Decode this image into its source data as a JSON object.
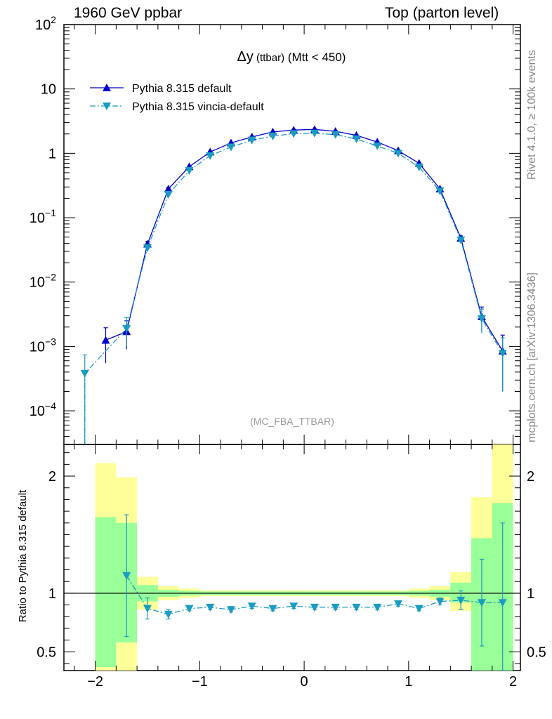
{
  "header": {
    "left": "1960 GeV ppbar",
    "right": "Top (parton level)"
  },
  "side_labels": {
    "rivet": "Rivet 4.1.0, ≥ 100k events",
    "mcplots": "mcplots.cern.ch [arXiv:1306.3436]"
  },
  "chart_data": {
    "type": "line",
    "title_main": "Δy",
    "title_sub": " (ttbar)",
    "title_tail": " (Mtt < 450)",
    "watermark": "(MC_FBA_TTBAR)",
    "xlabel": "",
    "xlim": [
      -2.3,
      2.07
    ],
    "ylim": [
      3e-05,
      100
    ],
    "yscale": "log",
    "x_ticks": [
      -2,
      -1,
      0,
      1,
      2
    ],
    "x_tick_labels": [
      "−2",
      "−1",
      "0",
      "1",
      "2"
    ],
    "y_tick_labels": [
      {
        "value": 100,
        "base": "10",
        "exp": "2"
      },
      {
        "value": 10,
        "base": "10",
        "exp": ""
      },
      {
        "value": 1,
        "base": "1",
        "exp": ""
      },
      {
        "value": 0.1,
        "base": "10",
        "exp": "−1"
      },
      {
        "value": 0.01,
        "base": "10",
        "exp": "−2"
      },
      {
        "value": 0.001,
        "base": "10",
        "exp": "−3"
      },
      {
        "value": 0.0001,
        "base": "10",
        "exp": "−4"
      }
    ],
    "series": [
      {
        "name": "Pythia 8.315 default",
        "color": "#0000cc",
        "marker": "triangle-up",
        "x": [
          -1.9,
          -1.7,
          -1.5,
          -1.3,
          -1.1,
          -0.9,
          -0.7,
          -0.5,
          -0.3,
          -0.1,
          0.1,
          0.3,
          0.5,
          0.7,
          0.9,
          1.1,
          1.3,
          1.5,
          1.7,
          1.9
        ],
        "y": [
          0.00125,
          0.0017,
          0.039,
          0.28,
          0.62,
          1.05,
          1.45,
          1.8,
          2.15,
          2.3,
          2.35,
          2.2,
          1.9,
          1.5,
          1.1,
          0.7,
          0.28,
          0.048,
          0.0029,
          0.00085
        ],
        "err": [
          0.0007,
          0.0008,
          0.004,
          0.015,
          0.02,
          0.03,
          0.04,
          0.05,
          0.05,
          0.05,
          0.05,
          0.05,
          0.05,
          0.04,
          0.03,
          0.02,
          0.015,
          0.004,
          0.0012,
          0.00065
        ]
      },
      {
        "name": "Pythia 8.315 vincia-default",
        "color": "#1a9bc0",
        "marker": "triangle-down",
        "x": [
          -2.1,
          -1.7,
          -1.5,
          -1.3,
          -1.1,
          -0.9,
          -0.7,
          -0.5,
          -0.3,
          -0.1,
          0.1,
          0.3,
          0.5,
          0.7,
          0.9,
          1.1,
          1.3,
          1.5,
          1.7,
          1.9
        ],
        "y": [
          0.00038,
          0.0019,
          0.034,
          0.23,
          0.54,
          0.92,
          1.25,
          1.6,
          1.85,
          2.02,
          2.05,
          1.95,
          1.67,
          1.3,
          1.0,
          0.61,
          0.26,
          0.045,
          0.0027,
          0.00078
        ],
        "err": [
          0.00036,
          0.0009,
          0.004,
          0.013,
          0.02,
          0.03,
          0.04,
          0.05,
          0.05,
          0.05,
          0.05,
          0.05,
          0.05,
          0.04,
          0.03,
          0.02,
          0.015,
          0.004,
          0.0011,
          0.00058
        ]
      }
    ],
    "ratio": {
      "ylabel": "Ratio to Pythia 8.315 default",
      "ylim": [
        0.34,
        2.27
      ],
      "y_ticks": [
        0.5,
        1,
        2
      ],
      "y_tick_labels": [
        "0.5",
        "1",
        "2"
      ],
      "bin_edges": [
        -2.0,
        -1.8,
        -1.6,
        -1.4,
        -1.2,
        -1.0,
        -0.8,
        -0.6,
        -0.4,
        -0.2,
        0.0,
        0.2,
        0.4,
        0.6,
        0.8,
        1.0,
        1.2,
        1.4,
        1.6,
        1.8,
        2.0
      ],
      "band_inner": [
        [
          0.37,
          1.65
        ],
        [
          0.58,
          1.6
        ],
        [
          0.93,
          1.07
        ],
        [
          0.97,
          1.03
        ],
        [
          0.98,
          1.02
        ],
        [
          0.985,
          1.015
        ],
        [
          0.985,
          1.015
        ],
        [
          0.985,
          1.015
        ],
        [
          0.985,
          1.015
        ],
        [
          0.985,
          1.015
        ],
        [
          0.985,
          1.015
        ],
        [
          0.985,
          1.015
        ],
        [
          0.985,
          1.015
        ],
        [
          0.985,
          1.015
        ],
        [
          0.985,
          1.015
        ],
        [
          0.98,
          1.02
        ],
        [
          0.97,
          1.03
        ],
        [
          0.92,
          1.09
        ],
        [
          0.34,
          1.47
        ],
        [
          0.34,
          1.77
        ]
      ],
      "band_outer": [
        [
          0.34,
          2.11
        ],
        [
          0.34,
          1.99
        ],
        [
          0.86,
          1.14
        ],
        [
          0.94,
          1.06
        ],
        [
          0.96,
          1.04
        ],
        [
          0.975,
          1.025
        ],
        [
          0.975,
          1.025
        ],
        [
          0.975,
          1.025
        ],
        [
          0.975,
          1.025
        ],
        [
          0.975,
          1.025
        ],
        [
          0.975,
          1.025
        ],
        [
          0.975,
          1.025
        ],
        [
          0.975,
          1.025
        ],
        [
          0.975,
          1.025
        ],
        [
          0.975,
          1.025
        ],
        [
          0.96,
          1.04
        ],
        [
          0.94,
          1.06
        ],
        [
          0.85,
          1.18
        ],
        [
          0.34,
          1.82
        ],
        [
          0.34,
          2.27
        ]
      ],
      "points": {
        "x": [
          -1.7,
          -1.5,
          -1.3,
          -1.1,
          -0.9,
          -0.7,
          -0.5,
          -0.3,
          -0.1,
          0.1,
          0.3,
          0.5,
          0.7,
          0.9,
          1.1,
          1.3,
          1.5,
          1.7,
          1.9
        ],
        "y": [
          1.15,
          0.87,
          0.82,
          0.87,
          0.88,
          0.86,
          0.89,
          0.87,
          0.89,
          0.88,
          0.88,
          0.88,
          0.88,
          0.91,
          0.87,
          0.93,
          0.94,
          0.92,
          0.92
        ],
        "err": [
          0.52,
          0.09,
          0.04,
          0.02,
          0.02,
          0.02,
          0.02,
          0.02,
          0.02,
          0.02,
          0.02,
          0.02,
          0.02,
          0.02,
          0.02,
          0.03,
          0.08,
          0.37,
          0.68
        ]
      },
      "colors": {
        "inner": "#99ff99",
        "outer": "#ffff99"
      }
    }
  }
}
